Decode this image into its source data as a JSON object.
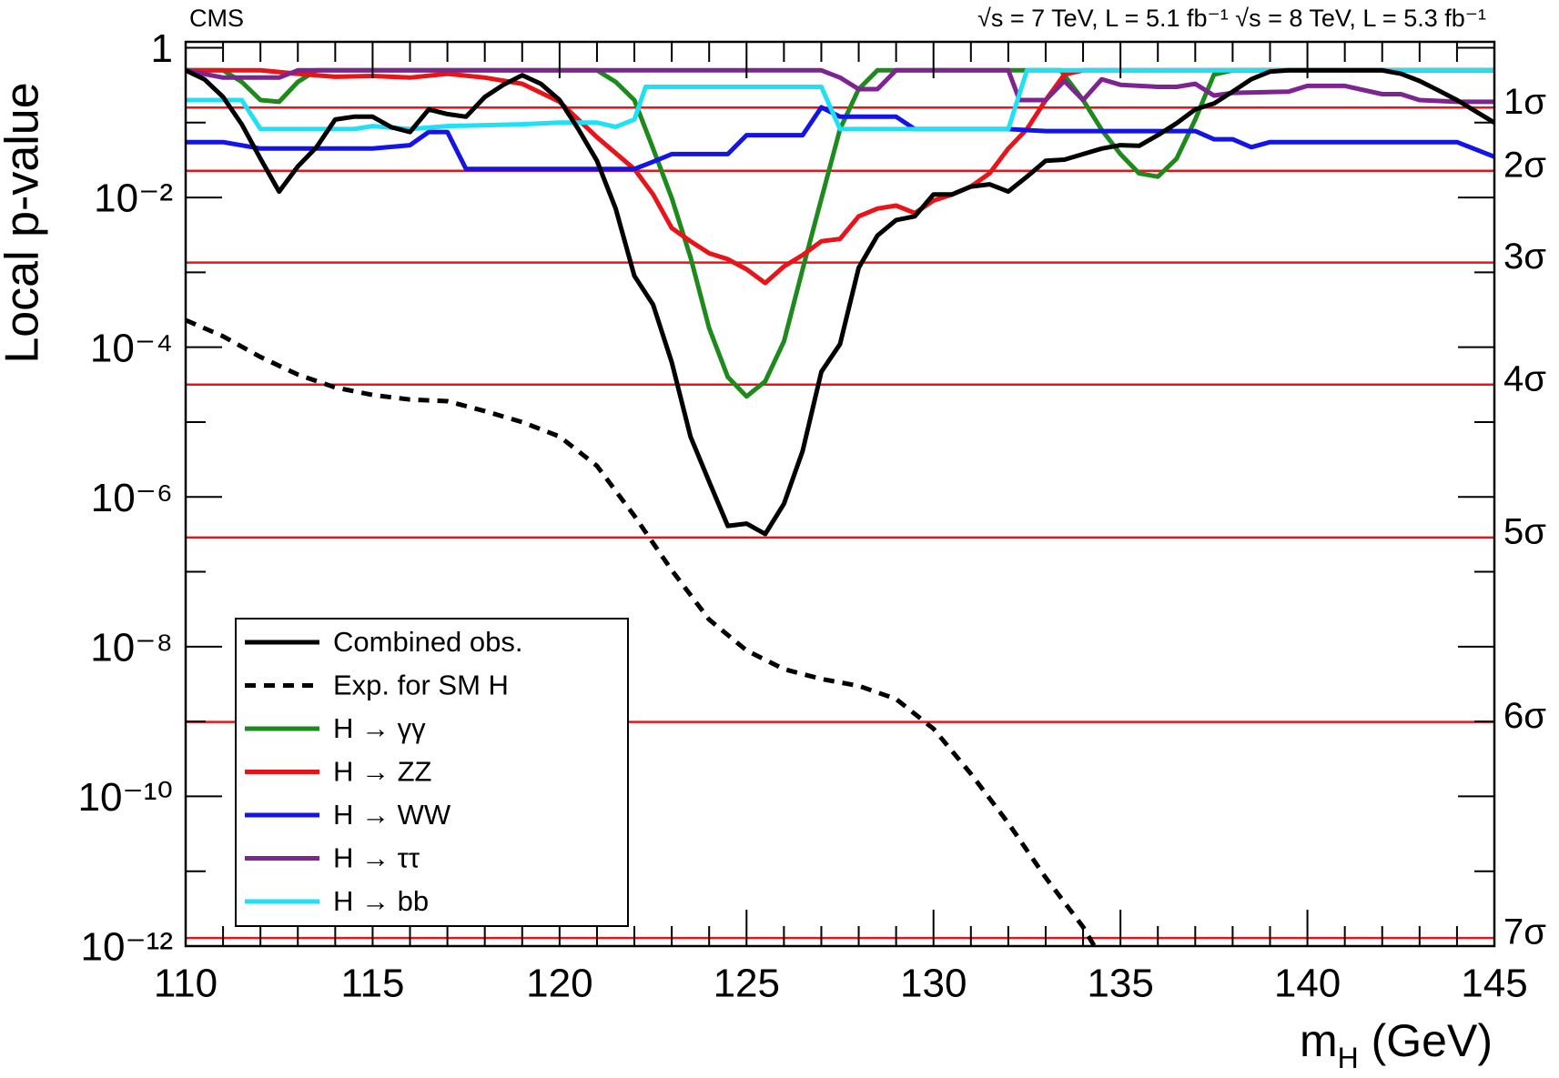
{
  "chart_data": {
    "type": "line",
    "title": "CMS",
    "subtitle": "√s = 7 TeV, L = 5.1 fb⁻¹  √s = 8 TeV, L = 5.3 fb⁻¹",
    "x_label": [
      "m",
      "H",
      " (GeV)"
    ],
    "y_label": "Local p-value",
    "log_y": true,
    "xlim": [
      110,
      145
    ],
    "xticks": [
      110,
      115,
      120,
      125,
      130,
      135,
      140,
      145
    ],
    "xminor_ticks": [
      111,
      112,
      113,
      114,
      116,
      117,
      118,
      119,
      121,
      122,
      123,
      124,
      126,
      127,
      128,
      129,
      131,
      132,
      133,
      134,
      136,
      137,
      138,
      139,
      141,
      142,
      143,
      144
    ],
    "ylim": [
      1e-12,
      1.2
    ],
    "yticks": [
      1,
      {
        "value": 0.01,
        "label": "10⁻²"
      },
      {
        "value": 0.0001,
        "label": "10⁻⁴"
      },
      {
        "value": 1e-06,
        "label": "10⁻⁶"
      },
      {
        "value": 1e-08,
        "label": "10⁻⁸"
      },
      {
        "value": 1e-10,
        "label": "10⁻¹⁰"
      },
      {
        "value": 1e-12,
        "label": "10⁻¹²"
      }
    ],
    "yminor_ticks": [
      0.1,
      0.001,
      1e-05,
      1e-07,
      1e-09,
      1e-11
    ],
    "sigma_color": "#e8141a",
    "sigma_lines": [
      {
        "value": 0.1587,
        "label": "1σ"
      },
      {
        "value": 0.02275,
        "label": "2σ"
      },
      {
        "value": 0.00135,
        "label": "3σ"
      },
      {
        "value": 3.17e-05,
        "label": "4σ"
      },
      {
        "value": 2.87e-07,
        "label": "5σ"
      },
      {
        "value": 9.87e-10,
        "label": "6σ"
      },
      {
        "value": 1.28e-12,
        "label": "7σ"
      }
    ],
    "legend": "lower-left",
    "series": [
      {
        "name": "Combined  obs.",
        "color": "#000000",
        "dashed": false,
        "x": [
          110,
          110.5,
          111,
          111.5,
          112,
          112.5,
          113,
          113.5,
          114,
          114.5,
          115,
          115.5,
          116,
          116.5,
          117,
          117.5,
          118,
          118.5,
          119,
          119.5,
          120,
          120.5,
          121,
          121.5,
          122,
          122.5,
          123,
          123.5,
          124,
          124.5,
          125,
          125.5,
          126,
          126.5,
          127,
          127.5,
          128,
          128.5,
          129,
          129.5,
          130,
          130.5,
          131,
          131.5,
          132,
          132.5,
          133,
          133.5,
          134,
          134.5,
          135,
          135.5,
          136,
          136.5,
          137,
          137.5,
          138,
          138.5,
          139,
          139.5,
          140,
          141,
          142,
          142.5,
          143,
          143.5,
          144,
          145
        ],
        "values": [
          0.5,
          0.38,
          0.22,
          0.095,
          0.033,
          0.012,
          0.026,
          0.047,
          0.11,
          0.12,
          0.12,
          0.087,
          0.075,
          0.15,
          0.13,
          0.12,
          0.22,
          0.32,
          0.43,
          0.33,
          0.2,
          0.082,
          0.031,
          0.0071,
          0.0009,
          0.00037,
          6.3e-05,
          6.4e-06,
          1.6e-06,
          4.1e-07,
          4.4e-07,
          3.2e-07,
          8.1e-07,
          4.1e-06,
          4.7e-05,
          0.00011,
          0.00115,
          0.0031,
          0.005,
          0.0056,
          0.011,
          0.011,
          0.014,
          0.015,
          0.012,
          0.019,
          0.031,
          0.032,
          0.038,
          0.045,
          0.05,
          0.049,
          0.068,
          0.098,
          0.15,
          0.18,
          0.26,
          0.38,
          0.48,
          0.5,
          0.5,
          0.5,
          0.5,
          0.45,
          0.36,
          0.27,
          0.2,
          0.1
        ]
      },
      {
        "name": "Exp. for SM H",
        "color": "#000000",
        "dashed": true,
        "x": [
          110,
          111,
          112,
          113,
          114,
          115,
          116,
          117,
          118,
          119,
          120,
          121,
          122,
          123,
          124,
          125,
          126,
          127,
          128,
          129,
          130,
          131,
          132,
          133,
          134,
          134.3
        ],
        "values": [
          0.00023,
          0.00014,
          7.4e-05,
          4.3e-05,
          2.9e-05,
          2.3e-05,
          2e-05,
          1.9e-05,
          1.4e-05,
          1e-05,
          6.4e-06,
          2.6e-06,
          5.6e-07,
          1.05e-07,
          2.3e-08,
          8.9e-09,
          5e-09,
          3.7e-09,
          3e-09,
          2e-09,
          8e-10,
          2e-10,
          4.4e-11,
          8.2e-12,
          1.8e-12,
          1e-12
        ]
      },
      {
        "name": "H → γγ",
        "color": "#1e8a1e",
        "dashed": false,
        "x": [
          110,
          111,
          111.5,
          112,
          112.5,
          113,
          113.5,
          121,
          121.5,
          122,
          122.5,
          123,
          123.5,
          124,
          124.5,
          125,
          125.5,
          126,
          126.5,
          127,
          127.5,
          128,
          128.5,
          133.4,
          134,
          134.5,
          135,
          135.5,
          136,
          136.5,
          137,
          137.5,
          138,
          145
        ],
        "values": [
          0.5,
          0.5,
          0.35,
          0.2,
          0.19,
          0.35,
          0.5,
          0.5,
          0.35,
          0.2,
          0.045,
          0.0098,
          0.0016,
          0.00018,
          4e-05,
          2.2e-05,
          3.5e-05,
          0.00012,
          0.0011,
          0.0096,
          0.082,
          0.28,
          0.5,
          0.5,
          0.2,
          0.08,
          0.038,
          0.021,
          0.019,
          0.033,
          0.11,
          0.44,
          0.5,
          0.5
        ]
      },
      {
        "name": "H → ZZ",
        "color": "#e8141a",
        "dashed": false,
        "x": [
          110,
          112,
          113,
          114,
          115,
          116,
          117,
          118,
          119,
          120,
          121,
          122,
          122.5,
          123,
          123.5,
          124,
          124.5,
          125,
          125.5,
          126,
          126.5,
          127,
          127.5,
          128,
          128.5,
          129,
          129.5,
          130,
          130.5,
          131,
          131.5,
          132,
          132.5,
          133,
          133.5,
          134,
          145
        ],
        "values": [
          0.5,
          0.5,
          0.45,
          0.41,
          0.42,
          0.4,
          0.45,
          0.4,
          0.33,
          0.19,
          0.064,
          0.024,
          0.011,
          0.0039,
          0.0026,
          0.0018,
          0.0015,
          0.0011,
          0.00072,
          0.0012,
          0.0017,
          0.0026,
          0.0028,
          0.0056,
          0.0071,
          0.0078,
          0.0062,
          0.0091,
          0.011,
          0.014,
          0.021,
          0.045,
          0.082,
          0.2,
          0.44,
          0.5,
          0.5
        ]
      },
      {
        "name": "H → WW",
        "color": "#1414e6",
        "dashed": false,
        "x": [
          110,
          111,
          112,
          115,
          116,
          116.5,
          117,
          117.5,
          122,
          122.5,
          123,
          124.5,
          125,
          126.5,
          127,
          127.5,
          129,
          129.5,
          132,
          133,
          137,
          137.5,
          138,
          138.5,
          139,
          144,
          145
        ],
        "values": [
          0.055,
          0.055,
          0.045,
          0.045,
          0.05,
          0.075,
          0.075,
          0.024,
          0.024,
          0.03,
          0.038,
          0.038,
          0.068,
          0.068,
          0.16,
          0.12,
          0.12,
          0.082,
          0.082,
          0.077,
          0.077,
          0.06,
          0.06,
          0.047,
          0.055,
          0.055,
          0.035
        ]
      },
      {
        "name": "H → ττ",
        "color": "#7d2490",
        "dashed": false,
        "x": [
          110,
          111,
          112.5,
          113,
          127,
          127.5,
          128,
          128.5,
          129,
          132,
          132.3,
          133,
          133.5,
          134,
          134.5,
          135,
          136,
          136.5,
          137,
          137.5,
          138,
          139.5,
          140,
          141,
          142,
          142.5,
          143,
          144,
          145
        ],
        "values": [
          0.5,
          0.4,
          0.4,
          0.5,
          0.5,
          0.4,
          0.28,
          0.28,
          0.5,
          0.5,
          0.2,
          0.2,
          0.36,
          0.2,
          0.38,
          0.32,
          0.3,
          0.3,
          0.33,
          0.23,
          0.25,
          0.26,
          0.31,
          0.31,
          0.24,
          0.24,
          0.2,
          0.19,
          0.19
        ]
      },
      {
        "name": "H → bb",
        "color": "#20e0f5",
        "dashed": false,
        "x": [
          110,
          111.5,
          112,
          114.5,
          115,
          116,
          117,
          119,
          120,
          121,
          121.5,
          122,
          122.3,
          127,
          127.5,
          132,
          132.5,
          145
        ],
        "values": [
          0.2,
          0.2,
          0.082,
          0.082,
          0.09,
          0.082,
          0.09,
          0.095,
          0.1,
          0.1,
          0.088,
          0.11,
          0.3,
          0.3,
          0.082,
          0.082,
          0.5,
          0.5
        ]
      }
    ]
  }
}
